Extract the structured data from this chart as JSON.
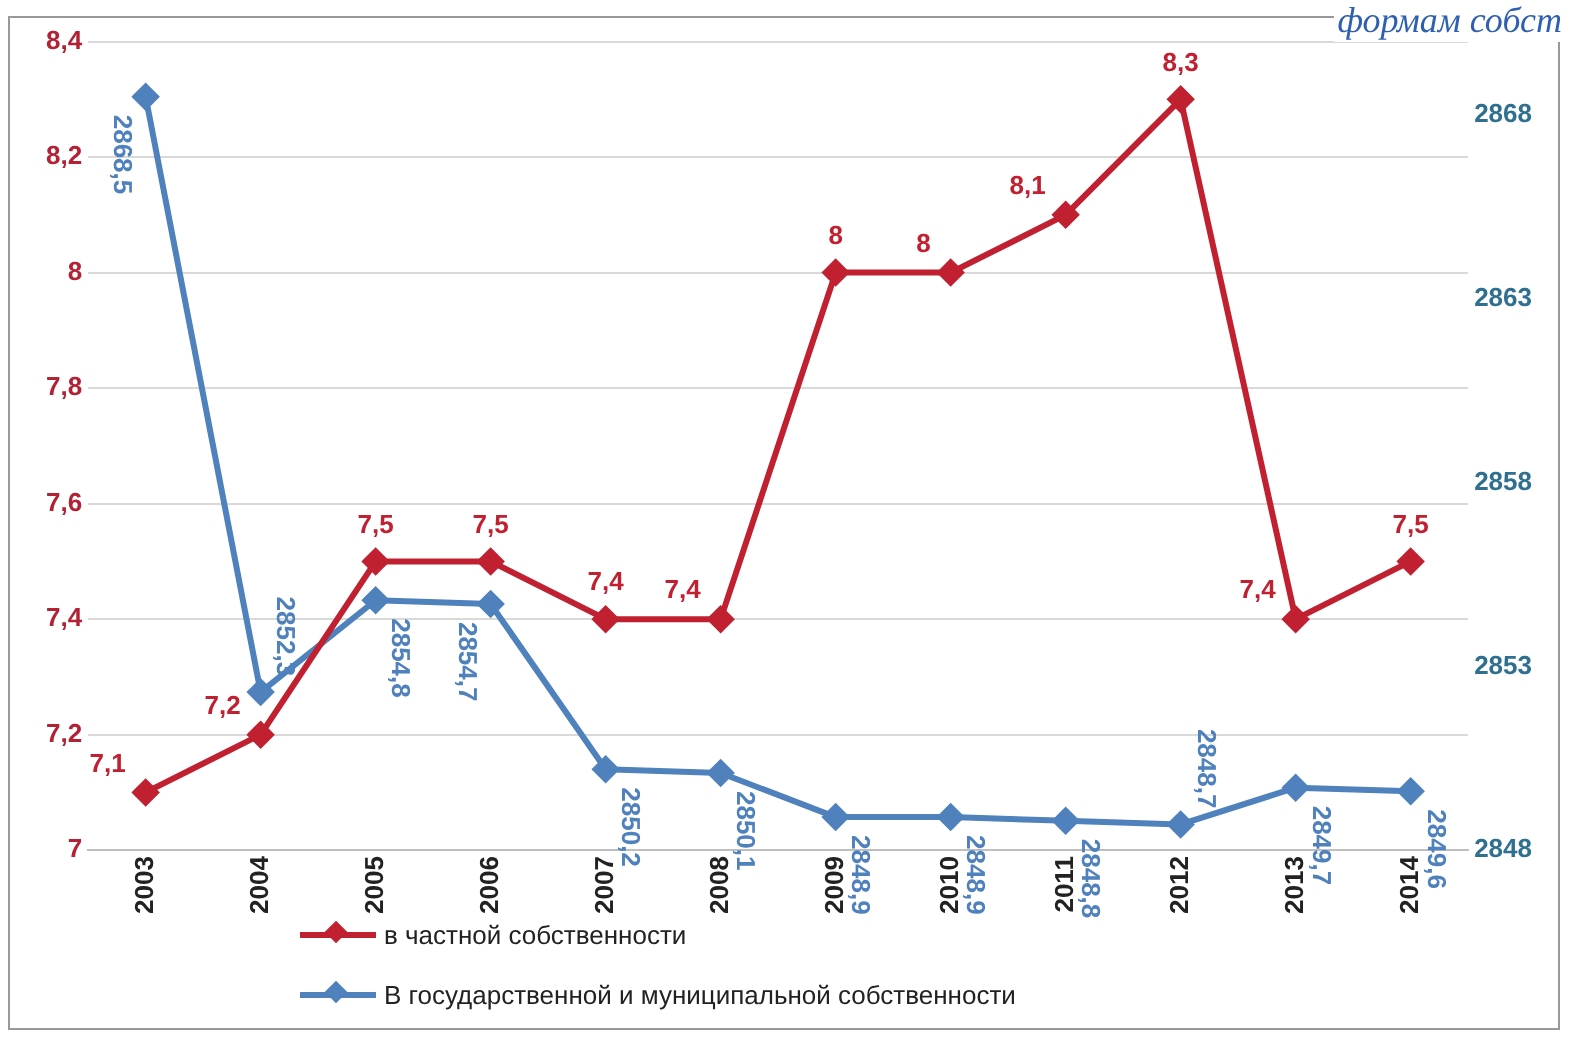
{
  "chart_data": {
    "type": "line",
    "categories": [
      "2003",
      "2004",
      "2005",
      "2006",
      "2007",
      "2008",
      "2009",
      "2010",
      "2011",
      "2012",
      "2013",
      "2014"
    ],
    "series": [
      {
        "name": "в частной собственности",
        "color": "#c0202f",
        "values": [
          7.1,
          7.2,
          7.5,
          7.5,
          7.4,
          7.4,
          8,
          8,
          8.1,
          8.3,
          7.4,
          7.5
        ],
        "value_labels": [
          "7,1",
          "7,2",
          "7,5",
          "7,5",
          "7,4",
          "7,4",
          "8",
          "8",
          "8,1",
          "8,3",
          "7,4",
          "7,5"
        ]
      },
      {
        "name": "В государственной и муниципальной собственности",
        "color": "#4f81bd",
        "axis": "y2",
        "values": [
          2868.5,
          2852.3,
          2854.8,
          2854.7,
          2850.2,
          2850.1,
          2848.9,
          2848.9,
          2848.8,
          2848.7,
          2849.7,
          2849.6
        ],
        "value_labels": [
          "2868,5",
          "2852,3",
          "2854,8",
          "2854,7",
          "2850,2",
          "2850,1",
          "2848,9",
          "2848,9",
          "2848,8",
          "2848,7",
          "2849,7",
          "2849,6"
        ]
      }
    ],
    "ylim": [
      7,
      8.4
    ],
    "yticks": [
      7,
      {
        "value": 7.2,
        "label": "7,2"
      },
      {
        "value": 7.4,
        "label": "7,4"
      },
      {
        "value": 7.6,
        "label": "7,6"
      },
      {
        "value": 7.8,
        "label": "7,8"
      },
      8,
      {
        "value": 8.2,
        "label": "8,2"
      },
      {
        "value": 8.4,
        "label": "8,4"
      }
    ],
    "y2lim": [
      2848,
      2870
    ],
    "y2ticks": [
      2848,
      2853,
      2858,
      2863,
      2868
    ],
    "grid": "y",
    "legend": "bottom",
    "marker": "diamond",
    "line_style": "solid",
    "annotations": [
      "формам собст"
    ]
  }
}
